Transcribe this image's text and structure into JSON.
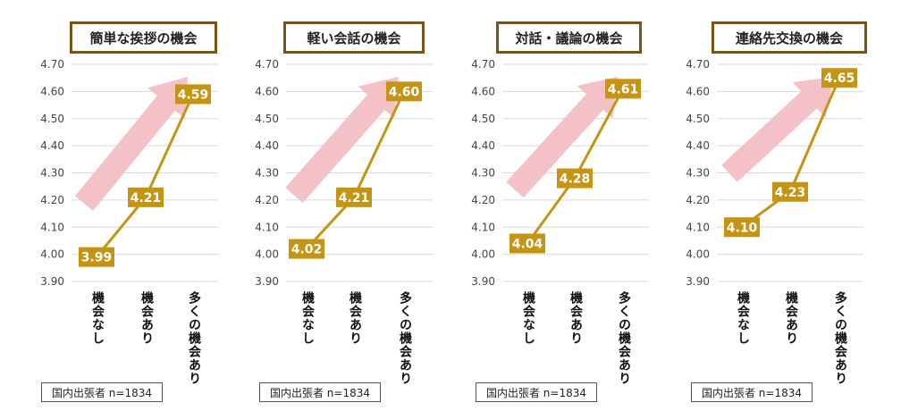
{
  "note": "国内出張者 n=1834",
  "colors": {
    "line": "#c59412",
    "label_bg": "#c59412",
    "label_text": "#ffffff",
    "arrow": "#f4c2c6",
    "grid": "#d9d9d9",
    "title_border": "#7a5410"
  },
  "chart_data": [
    {
      "type": "line",
      "title": "簡単な挨拶の機会",
      "categories": [
        "機会なし",
        "機会あり",
        "多くの機会あり"
      ],
      "values": [
        3.99,
        4.21,
        4.59
      ],
      "labels": [
        "3.99",
        "4.21",
        "4.59"
      ],
      "ylim": [
        3.9,
        4.7
      ],
      "yticks": [
        "3.90",
        "4.00",
        "4.10",
        "4.20",
        "4.30",
        "4.40",
        "4.50",
        "4.60",
        "4.70"
      ],
      "grid": true
    },
    {
      "type": "line",
      "title": "軽い会話の機会",
      "categories": [
        "機会なし",
        "機会あり",
        "多くの機会あり"
      ],
      "values": [
        4.02,
        4.21,
        4.6
      ],
      "labels": [
        "4.02",
        "4.21",
        "4.60"
      ],
      "ylim": [
        3.9,
        4.7
      ],
      "yticks": [
        "3.90",
        "4.00",
        "4.10",
        "4.20",
        "4.30",
        "4.40",
        "4.50",
        "4.60",
        "4.70"
      ],
      "grid": true
    },
    {
      "type": "line",
      "title": "対話・議論の機会",
      "categories": [
        "機会なし",
        "機会あり",
        "多くの機会あり"
      ],
      "values": [
        4.04,
        4.28,
        4.61
      ],
      "labels": [
        "4.04",
        "4.28",
        "4.61"
      ],
      "ylim": [
        3.9,
        4.7
      ],
      "yticks": [
        "3.90",
        "4.00",
        "4.10",
        "4.20",
        "4.30",
        "4.40",
        "4.50",
        "4.60",
        "4.70"
      ],
      "grid": true
    },
    {
      "type": "line",
      "title": "連絡先交換の機会",
      "categories": [
        "機会なし",
        "機会あり",
        "多くの機会あり"
      ],
      "values": [
        4.1,
        4.23,
        4.65
      ],
      "labels": [
        "4.10",
        "4.23",
        "4.65"
      ],
      "ylim": [
        3.9,
        4.7
      ],
      "yticks": [
        "3.90",
        "4.00",
        "4.10",
        "4.20",
        "4.30",
        "4.40",
        "4.50",
        "4.60",
        "4.70"
      ],
      "grid": true
    }
  ]
}
